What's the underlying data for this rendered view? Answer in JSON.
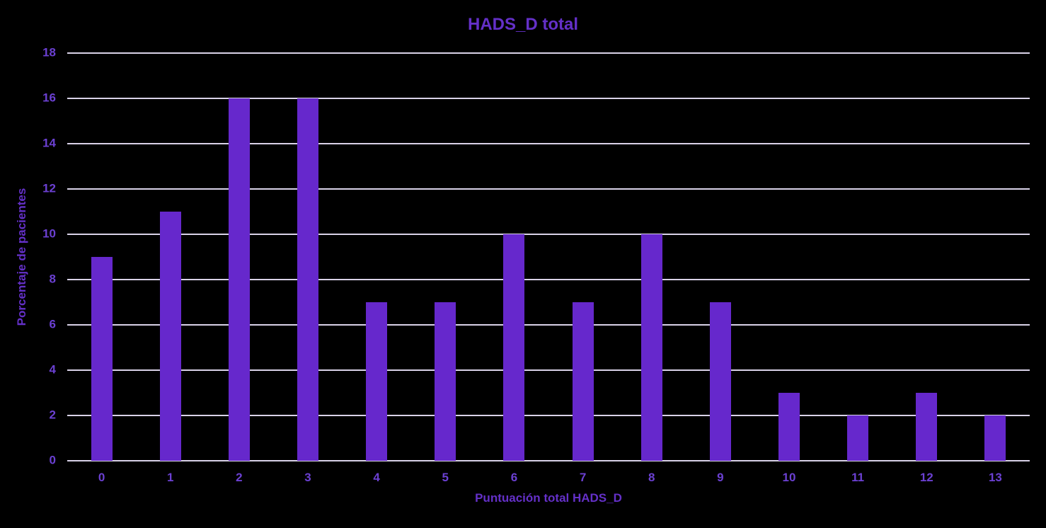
{
  "chart_data": {
    "type": "bar",
    "title": "HADS_D total",
    "xlabel": "Puntuación total HADS_D",
    "ylabel": "Porcentaje de pacientes",
    "categories": [
      "0",
      "1",
      "2",
      "3",
      "4",
      "5",
      "6",
      "7",
      "8",
      "9",
      "10",
      "11",
      "12",
      "13"
    ],
    "values": [
      9,
      11,
      16,
      16,
      7,
      7,
      10,
      7,
      10,
      7,
      3,
      2,
      3,
      2
    ],
    "ylim": [
      0,
      18
    ],
    "yticks": [
      0,
      2,
      4,
      6,
      8,
      10,
      12,
      14,
      16,
      18
    ],
    "grid": "horizontal",
    "legend": "none",
    "colors": {
      "background": "#000000",
      "bar": "#6628CC",
      "gridline": "#D9D2E8",
      "title_text": "#6430C8",
      "tick_text": "#6B40D2",
      "axis_label_text": "#6430C8"
    }
  }
}
